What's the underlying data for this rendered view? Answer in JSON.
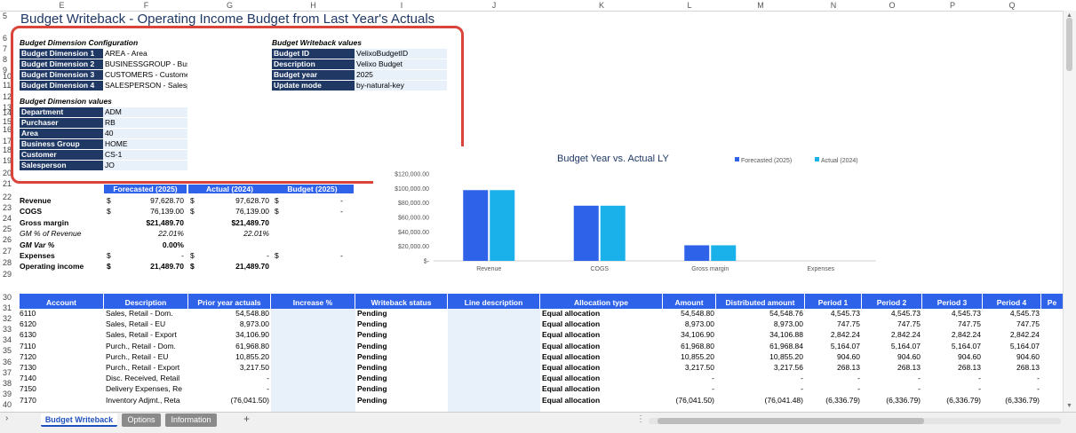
{
  "columns": [
    "E",
    "F",
    "G",
    "H",
    "I",
    "J",
    "K",
    "L",
    "M",
    "N",
    "O",
    "P",
    "Q"
  ],
  "row_numbers": [
    "5",
    "6",
    "7",
    "8",
    "9",
    "10",
    "11",
    "12",
    "13",
    "14",
    "15",
    "16",
    "17",
    "18",
    "19",
    "20",
    "21",
    "22",
    "23",
    "24",
    "25",
    "26",
    "27",
    "28",
    "29",
    "30",
    "31",
    "32",
    "33",
    "34",
    "35",
    "36",
    "37",
    "38",
    "39",
    "40"
  ],
  "title": "Budget Writeback - Operating Income Budget from Last Year's Actuals",
  "dim_config": {
    "heading": "Budget Dimension Configuration",
    "rows": [
      {
        "label": "Budget Dimension 1",
        "value": "AREA - Area"
      },
      {
        "label": "Budget Dimension 2",
        "value": "BUSINESSGROUP - Business Group"
      },
      {
        "label": "Budget Dimension 3",
        "value": "CUSTOMERS - Customer"
      },
      {
        "label": "Budget Dimension 4",
        "value": "SALESPERSON - Salesperson"
      }
    ]
  },
  "writeback": {
    "heading": "Budget Writeback values",
    "rows": [
      {
        "label": "Budget ID",
        "value": "VelixoBudgetID"
      },
      {
        "label": "Description",
        "value": "Velixo Budget"
      },
      {
        "label": "Budget year",
        "value": "2025"
      },
      {
        "label": "Update mode",
        "value": "by-natural-key"
      }
    ]
  },
  "dim_values": {
    "heading": "Budget Dimension values",
    "rows": [
      {
        "label": "Department",
        "value": "ADM"
      },
      {
        "label": "Purchaser",
        "value": "RB"
      },
      {
        "label": "Area",
        "value": "40"
      },
      {
        "label": "Business Group",
        "value": "HOME"
      },
      {
        "label": "Customer",
        "value": "CS-1"
      },
      {
        "label": "Salesperson",
        "value": "JO"
      }
    ]
  },
  "summary": {
    "headers": [
      "Forecasted (2025)",
      "Actual (2024)",
      "Budget (2025)"
    ],
    "rows": [
      {
        "label": "Revenue",
        "style": "bold",
        "d1": "$",
        "v1": "97,628.70",
        "d2": "$",
        "v2": "97,628.70",
        "d3": "$",
        "v3": "-"
      },
      {
        "label": "COGS",
        "style": "bold",
        "d1": "$",
        "v1": "76,139.00",
        "d2": "$",
        "v2": "76,139.00",
        "d3": "$",
        "v3": "-"
      },
      {
        "label": "Gross margin",
        "style": "bold",
        "d1": "",
        "v1": "$21,489.70",
        "d2": "",
        "v2": "$21,489.70",
        "d3": "",
        "v3": ""
      },
      {
        "label": "GM % of Revenue",
        "style": "italic",
        "d1": "",
        "v1": "22.01%",
        "d2": "",
        "v2": "22.01%",
        "d3": "",
        "v3": ""
      },
      {
        "label": "GM Var %",
        "style": "bolditalic",
        "d1": "",
        "v1": "0.00%",
        "d2": "",
        "v2": "",
        "d3": "",
        "v3": ""
      },
      {
        "label": "Expenses",
        "style": "bold",
        "d1": "$",
        "v1": "-",
        "d2": "$",
        "v2": "-",
        "d3": "$",
        "v3": "-"
      },
      {
        "label": "Operating income",
        "style": "bold",
        "d1": "$",
        "v1": "21,489.70",
        "d2": "$",
        "v2": "21,489.70",
        "d3": "",
        "v3": ""
      }
    ]
  },
  "chart_data": {
    "type": "bar",
    "title": "Budget Year vs. Actual LY",
    "categories": [
      "Revenue",
      "COGS",
      "Gross margin",
      "Expenses"
    ],
    "series": [
      {
        "name": "Forecasted (2025)",
        "color": "#2e62e8",
        "values": [
          97628.7,
          76139.0,
          21489.7,
          0
        ]
      },
      {
        "name": "Actual (2024)",
        "color": "#1ab0ea",
        "values": [
          97628.7,
          76139.0,
          21489.7,
          0
        ]
      }
    ],
    "y_ticks": [
      "$120,000.00",
      "$100,000.00",
      "$80,000.00",
      "$60,000.00",
      "$40,000.00",
      "$20,000.00",
      "$-"
    ],
    "ylim": [
      0,
      120000
    ],
    "legend": "top-right",
    "grid": false
  },
  "table": {
    "headers": [
      "Account",
      "Description",
      "Prior year actuals",
      "Increase %",
      "Writeback status",
      "Line description",
      "Allocation type",
      "Amount",
      "Distributed amount",
      "Period 1",
      "Period 2",
      "Period 3",
      "Period 4",
      "Pe"
    ],
    "rows": [
      [
        "6110",
        "Sales, Retail - Dom.",
        "54,548.80",
        "",
        "Pending",
        "",
        "Equal allocation",
        "54,548.80",
        "54,548.76",
        "4,545.73",
        "4,545.73",
        "4,545.73",
        "4,545.73"
      ],
      [
        "6120",
        "Sales, Retail - EU",
        "8,973.00",
        "",
        "Pending",
        "",
        "Equal allocation",
        "8,973.00",
        "8,973.00",
        "747.75",
        "747.75",
        "747.75",
        "747.75"
      ],
      [
        "6130",
        "Sales, Retail - Export",
        "34,106.90",
        "",
        "Pending",
        "",
        "Equal allocation",
        "34,106.90",
        "34,106.88",
        "2,842.24",
        "2,842.24",
        "2,842.24",
        "2,842.24"
      ],
      [
        "7110",
        "Purch., Retail - Dom.",
        "61,968.80",
        "",
        "Pending",
        "",
        "Equal allocation",
        "61,968.80",
        "61,968.84",
        "5,164.07",
        "5,164.07",
        "5,164.07",
        "5,164.07"
      ],
      [
        "7120",
        "Purch., Retail - EU",
        "10,855.20",
        "",
        "Pending",
        "",
        "Equal allocation",
        "10,855.20",
        "10,855.20",
        "904.60",
        "904.60",
        "904.60",
        "904.60"
      ],
      [
        "7130",
        "Purch., Retail - Export",
        "3,217.50",
        "",
        "Pending",
        "",
        "Equal allocation",
        "3,217.50",
        "3,217.56",
        "268.13",
        "268.13",
        "268.13",
        "268.13"
      ],
      [
        "7140",
        "Disc. Received, Retail",
        "-",
        "",
        "Pending",
        "",
        "Equal allocation",
        "-",
        "-",
        "-",
        "-",
        "-",
        "-"
      ],
      [
        "7150",
        "Delivery Expenses, Re",
        "-",
        "",
        "Pending",
        "",
        "Equal allocation",
        "-",
        "-",
        "-",
        "-",
        "-",
        "-"
      ],
      [
        "7170",
        "Inventory Adjmt., Reta",
        "(76,041.50)",
        "",
        "Pending",
        "",
        "Equal allocation",
        "(76,041.50)",
        "(76,041.48)",
        "(6,336.79)",
        "(6,336.79)",
        "(6,336.79)",
        "(6,336.79)"
      ]
    ]
  },
  "sheet_tabs": [
    "Budget Writeback",
    "Options",
    "Information"
  ],
  "add_sheet": "+",
  "scroll_ellipsis": "⋮",
  "nav_arrow": "›"
}
